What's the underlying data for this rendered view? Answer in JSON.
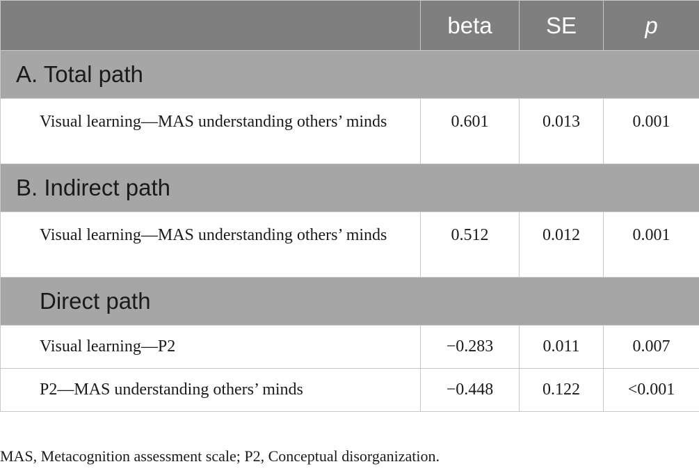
{
  "header": {
    "col1": "",
    "col2": "beta",
    "col3": "SE",
    "col4": "p"
  },
  "sections": [
    {
      "title": "A. Total path",
      "rows": [
        {
          "label": "Visual learning—MAS understanding others’ minds",
          "beta": "0.601",
          "se": "0.013",
          "p": "0.001"
        }
      ]
    },
    {
      "title": "B. Indirect path",
      "rows": [
        {
          "label": "Visual learning—MAS understanding others’ minds",
          "beta": "0.512",
          "se": "0.012",
          "p": "0.001"
        }
      ]
    },
    {
      "title": "Direct path",
      "rows": [
        {
          "label": "Visual learning—P2",
          "beta": "−0.283",
          "se": "0.011",
          "p": "0.007"
        },
        {
          "label": "P2—MAS understanding others’ minds",
          "beta": "−0.448",
          "se": "0.122",
          "p": "<0.001"
        }
      ]
    }
  ],
  "footnote": "MAS, Metacognition assessment scale; P2, Conceptual disorganization."
}
